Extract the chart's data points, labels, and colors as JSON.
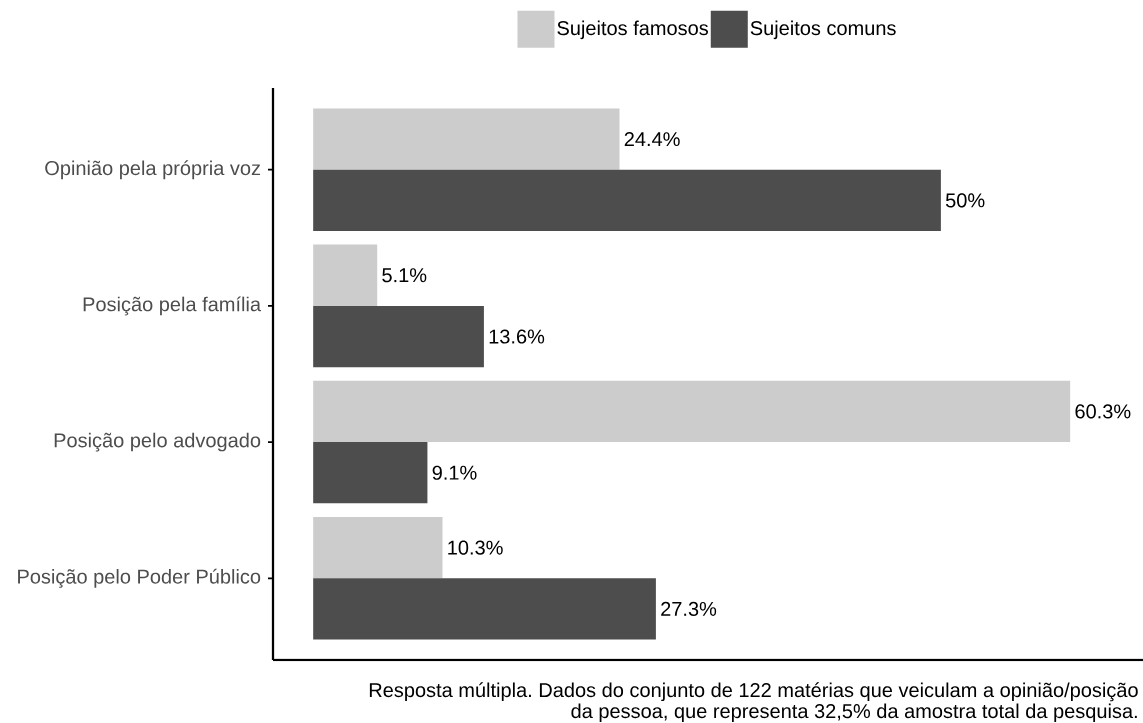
{
  "chart_data": {
    "type": "bar",
    "orientation": "horizontal",
    "categories": [
      "Opinião pela própria voz",
      "Posição pela família",
      "Posição pelo advogado",
      "Posição pelo Poder Público"
    ],
    "series": [
      {
        "name": "Sujeitos famosos",
        "color": "#cccccc",
        "values": [
          24.4,
          5.1,
          60.3,
          10.3
        ],
        "value_labels": [
          "24.4%",
          "5.1%",
          "60.3%",
          "10.3%"
        ]
      },
      {
        "name": "Sujeitos comuns",
        "color": "#4d4d4d",
        "values": [
          50,
          13.6,
          9.1,
          27.3
        ],
        "value_labels": [
          "50%",
          "13.6%",
          "9.1%",
          "27.3%"
        ]
      }
    ],
    "xlim": [
      -3.2,
      66.1
    ],
    "legend": "top",
    "tick_labels": "y",
    "annotations": [
      "Resposta múltipla. Dados do conjunto de 122 matérias que veiculam a opinião/posição da pessoa, que representa 32,5% da amostra total da pesquisa."
    ]
  }
}
